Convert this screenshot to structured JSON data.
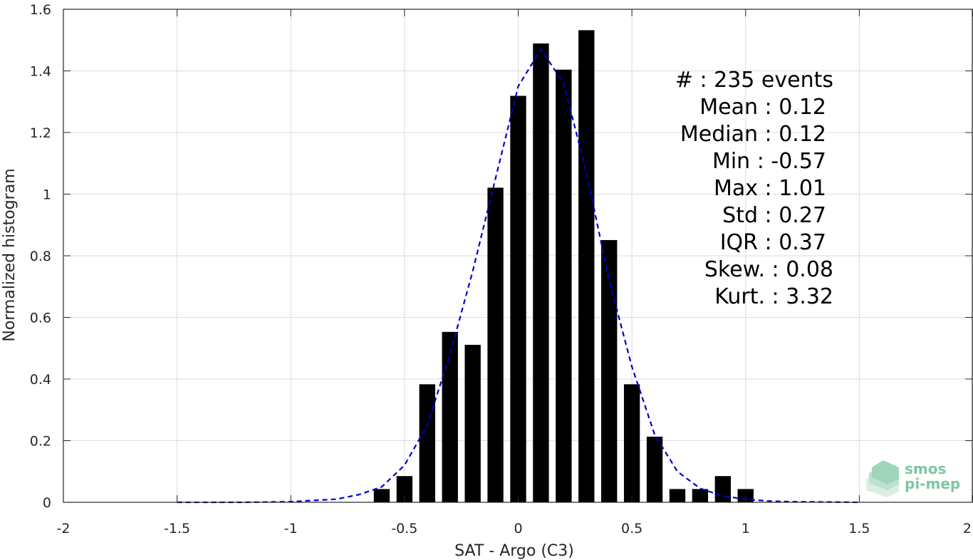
{
  "chart_data": {
    "type": "bar",
    "xlabel": "SAT - Argo (C3)",
    "ylabel": "Normalized histogram",
    "xlim": [
      -2,
      2
    ],
    "ylim": [
      0,
      1.6
    ],
    "xticks": [
      -2,
      -1.5,
      -1,
      -0.5,
      0,
      0.5,
      1,
      1.5,
      2
    ],
    "xtick_labels": [
      "-2",
      "-1.5",
      "-1",
      "-0.5",
      "0",
      "0.5",
      "1",
      "1.5",
      "2"
    ],
    "yticks": [
      0,
      0.2,
      0.4,
      0.6,
      0.8,
      1,
      1.2,
      1.4,
      1.6
    ],
    "ytick_labels": [
      "0",
      "0.2",
      "0.4",
      "0.6",
      "0.8",
      "1",
      "1.2",
      "1.4",
      "1.6"
    ],
    "grid": true,
    "bar_width": 0.07,
    "bar_color": "#000000",
    "bins": [
      -0.6,
      -0.5,
      -0.4,
      -0.3,
      -0.2,
      -0.1,
      0.0,
      0.1,
      0.2,
      0.3,
      0.4,
      0.5,
      0.6,
      0.7,
      0.8,
      0.9,
      1.0
    ],
    "values": [
      0.043,
      0.085,
      0.383,
      0.553,
      0.511,
      1.021,
      1.319,
      1.489,
      1.404,
      1.532,
      0.851,
      0.383,
      0.213,
      0.043,
      0.043,
      0.085,
      0.043
    ],
    "fit_curve": {
      "style": "dashed",
      "color": "#0000cc",
      "x": [
        -1.5,
        -1.2,
        -1.0,
        -0.8,
        -0.7,
        -0.6,
        -0.5,
        -0.4,
        -0.3,
        -0.2,
        -0.1,
        0.0,
        0.1,
        0.2,
        0.3,
        0.4,
        0.5,
        0.6,
        0.7,
        0.8,
        0.9,
        1.0,
        1.1,
        1.2,
        1.5
      ],
      "y": [
        0.0,
        0.0,
        0.002,
        0.01,
        0.025,
        0.05,
        0.12,
        0.25,
        0.48,
        0.75,
        1.05,
        1.35,
        1.47,
        1.36,
        1.07,
        0.72,
        0.44,
        0.22,
        0.1,
        0.045,
        0.02,
        0.01,
        0.004,
        0.002,
        0.0
      ]
    },
    "stats": [
      {
        "label": "#  : 235 events"
      },
      {
        "label": "Mean : 0.12"
      },
      {
        "label": "Median : 0.12"
      },
      {
        "label": "Min : -0.57"
      },
      {
        "label": "Max : 1.01"
      },
      {
        "label": "Std : 0.27"
      },
      {
        "label": "IQR : 0.37"
      },
      {
        "label": "Skew. : 0.08"
      },
      {
        "label": "Kurt. : 3.32"
      }
    ]
  },
  "logo": {
    "line1": "smos",
    "line2": "pi-mep",
    "color": "#7fc6a4"
  }
}
